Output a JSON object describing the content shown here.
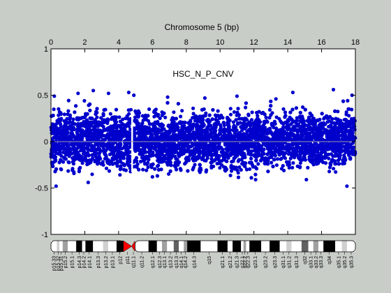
{
  "chart_data": {
    "type": "scatter",
    "title": "Chromosome 5 (bp)",
    "annotation": "HSC_N_P_CNV",
    "xlim": [
      0,
      18
    ],
    "ylim": [
      -1,
      1
    ],
    "x_ticks": [
      "0",
      "2",
      "4",
      "6",
      "8",
      "10",
      "12",
      "14",
      "16",
      "18"
    ],
    "y_ticks": [
      {
        "value": 1,
        "label": "1"
      },
      {
        "value": 0.5,
        "label": "0.5"
      },
      {
        "value": 0,
        "label": "0"
      },
      {
        "value": -0.5,
        "label": "-0.5"
      },
      {
        "value": -1,
        "label": "-1"
      }
    ],
    "series": [
      {
        "color": "#0000cc",
        "band": {
          "x_start": 0,
          "x_end": 18,
          "typical_low": -0.25,
          "typical_high": 0.28
        },
        "gap": {
          "x_start": 4.75,
          "x_end": 4.85
        },
        "outliers": [
          [
            0.2,
            0.49
          ],
          [
            0.3,
            -0.48
          ],
          [
            1.6,
            0.52
          ],
          [
            2.5,
            0.55
          ],
          [
            3.4,
            0.52
          ],
          [
            4.6,
            0.53
          ],
          [
            4.9,
            0.5
          ],
          [
            6.9,
            0.48
          ],
          [
            9.1,
            0.47
          ],
          [
            11.0,
            0.49
          ],
          [
            12.1,
            -0.41
          ],
          [
            13.3,
            0.46
          ],
          [
            14.3,
            0.53
          ],
          [
            15.1,
            -0.41
          ],
          [
            16.7,
            0.56
          ],
          [
            17.5,
            -0.48
          ],
          [
            17.8,
            0.5
          ],
          [
            2.2,
            -0.44
          ],
          [
            6.0,
            -0.38
          ]
        ]
      }
    ],
    "zero_line": {
      "value": 0,
      "color": "#9a9aa8"
    },
    "grid": false
  },
  "ideogram": {
    "centromere_x": 4.8,
    "bands": [
      {
        "name": "p15.33",
        "start": 0.0,
        "end": 0.35,
        "stain": "gneg"
      },
      {
        "name": "p15.32",
        "start": 0.35,
        "end": 0.5,
        "stain": "gpos25"
      },
      {
        "name": "p15.31",
        "start": 0.5,
        "end": 0.7,
        "stain": "gneg"
      },
      {
        "name": "p15.2",
        "start": 0.7,
        "end": 1.0,
        "stain": "gpos50"
      },
      {
        "name": "p15.1",
        "start": 1.0,
        "end": 1.5,
        "stain": "gneg"
      },
      {
        "name": "p14.3",
        "start": 1.5,
        "end": 1.85,
        "stain": "gpos100"
      },
      {
        "name": "p14.2",
        "start": 1.85,
        "end": 2.05,
        "stain": "gneg"
      },
      {
        "name": "p14.1",
        "start": 2.05,
        "end": 2.5,
        "stain": "gpos100"
      },
      {
        "name": "p13.3",
        "start": 2.5,
        "end": 3.1,
        "stain": "gneg"
      },
      {
        "name": "p13.2",
        "start": 3.1,
        "end": 3.4,
        "stain": "gpos25"
      },
      {
        "name": "p13.1",
        "start": 3.4,
        "end": 3.9,
        "stain": "gneg"
      },
      {
        "name": "p12",
        "start": 3.9,
        "end": 4.3,
        "stain": "gpos100"
      },
      {
        "name": "p11",
        "start": 4.3,
        "end": 4.8,
        "stain": "acen"
      },
      {
        "name": "q11.1",
        "start": 4.8,
        "end": 5.0,
        "stain": "acen"
      },
      {
        "name": "q11.2",
        "start": 5.0,
        "end": 5.8,
        "stain": "gneg"
      },
      {
        "name": "q12.1",
        "start": 5.8,
        "end": 6.3,
        "stain": "gpos100"
      },
      {
        "name": "q12.3",
        "start": 6.3,
        "end": 6.6,
        "stain": "gneg"
      },
      {
        "name": "q13.1",
        "start": 6.6,
        "end": 6.9,
        "stain": "gpos50"
      },
      {
        "name": "q13.2",
        "start": 6.9,
        "end": 7.3,
        "stain": "gneg"
      },
      {
        "name": "q13.3",
        "start": 7.3,
        "end": 7.6,
        "stain": "gpos75"
      },
      {
        "name": "q14.1",
        "start": 7.6,
        "end": 7.9,
        "stain": "gneg"
      },
      {
        "name": "q14.2",
        "start": 7.9,
        "end": 8.1,
        "stain": "gpos50"
      },
      {
        "name": "q14.3",
        "start": 8.1,
        "end": 8.9,
        "stain": "gpos100"
      },
      {
        "name": "q15",
        "start": 8.9,
        "end": 9.9,
        "stain": "gneg"
      },
      {
        "name": "q21.1",
        "start": 9.9,
        "end": 10.5,
        "stain": "gpos100"
      },
      {
        "name": "q21.2",
        "start": 10.5,
        "end": 10.8,
        "stain": "gneg"
      },
      {
        "name": "q21.3",
        "start": 10.8,
        "end": 11.3,
        "stain": "gpos100"
      },
      {
        "name": "q22.1",
        "start": 11.3,
        "end": 11.45,
        "stain": "gneg"
      },
      {
        "name": "q22.2",
        "start": 11.45,
        "end": 11.6,
        "stain": "gpos50"
      },
      {
        "name": "q22.3",
        "start": 11.6,
        "end": 11.8,
        "stain": "gneg"
      },
      {
        "name": "q23.1",
        "start": 11.8,
        "end": 12.5,
        "stain": "gpos100"
      },
      {
        "name": "q23.2",
        "start": 12.5,
        "end": 13.0,
        "stain": "gneg"
      },
      {
        "name": "q23.3",
        "start": 13.0,
        "end": 13.6,
        "stain": "gpos100"
      },
      {
        "name": "q31.1",
        "start": 13.6,
        "end": 14.0,
        "stain": "gneg"
      },
      {
        "name": "q31.2",
        "start": 14.0,
        "end": 14.3,
        "stain": "gpos25"
      },
      {
        "name": "q31.3",
        "start": 14.3,
        "end": 14.9,
        "stain": "gneg"
      },
      {
        "name": "q32",
        "start": 14.9,
        "end": 15.3,
        "stain": "gpos75"
      },
      {
        "name": "q33.1",
        "start": 15.3,
        "end": 15.6,
        "stain": "gneg"
      },
      {
        "name": "q33.2",
        "start": 15.6,
        "end": 15.9,
        "stain": "gpos50"
      },
      {
        "name": "q33.3",
        "start": 15.9,
        "end": 16.2,
        "stain": "gneg"
      },
      {
        "name": "q34",
        "start": 16.2,
        "end": 16.9,
        "stain": "gpos100"
      },
      {
        "name": "q35.1",
        "start": 16.9,
        "end": 17.3,
        "stain": "gneg"
      },
      {
        "name": "q35.2",
        "start": 17.3,
        "end": 17.6,
        "stain": "gpos25"
      },
      {
        "name": "q35.3",
        "start": 17.6,
        "end": 18.1,
        "stain": "gneg"
      }
    ],
    "stain_colors": {
      "gneg": "#ffffff",
      "gpos25": "#d0d0d0",
      "gpos50": "#a0a0a0",
      "gpos75": "#606060",
      "gpos100": "#000000",
      "acen": "#ff0000"
    }
  }
}
